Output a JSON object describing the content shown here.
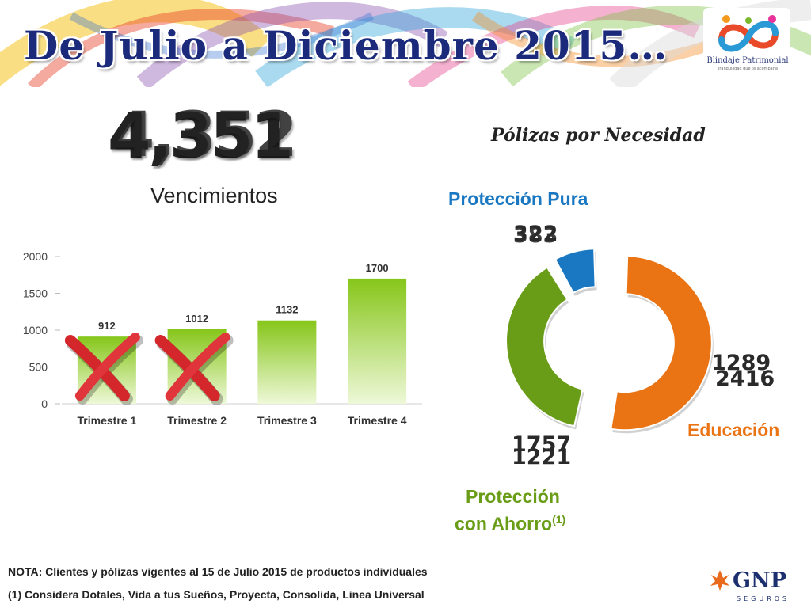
{
  "header": {
    "title": "De Julio a Diciembre 2015…",
    "logo": {
      "name": "Blindaje Patrimonial",
      "tagline": "Tranquilidad que te acompaña",
      "icon": "infinity-people-logo"
    }
  },
  "summary": {
    "total_values": [
      "4,351",
      "4,352"
    ],
    "subtitle": "Vencimientos"
  },
  "donut_title": "Pólizas por Necesidad",
  "segments": {
    "proteccion_pura": {
      "label": "Protección Pura",
      "numbers": [
        "322",
        "383"
      ],
      "color": "#1a78c2"
    },
    "educacion": {
      "label": "Educación",
      "numbers": [
        "1289",
        "2416"
      ],
      "color": "#ea7414"
    },
    "proteccion_ahorro": {
      "label_line1": "Protección",
      "label_line2": "con Ahorro",
      "superscript": "(1)",
      "numbers": [
        "1757",
        "1221"
      ],
      "color": "#6a9d17"
    }
  },
  "chart_data": [
    {
      "type": "bar",
      "categories": [
        "Trimestre 1",
        "Trimestre 2",
        "Trimestre 3",
        "Trimestre 4"
      ],
      "values": [
        912,
        1012,
        1132,
        1700
      ],
      "ylim": [
        0,
        2000
      ],
      "yticks": [
        0,
        500,
        1000,
        1500,
        2000
      ],
      "grid": false,
      "crossed_out": [
        "Trimestre 1",
        "Trimestre 2"
      ],
      "colors": {
        "bar_top": "#86c61a",
        "bar_bottom": "#eef8d8"
      }
    },
    {
      "type": "pie",
      "style": "donut",
      "slices": [
        {
          "label": "Educación",
          "value": 2416,
          "color": "#ea7414"
        },
        {
          "label": "Protección con Ahorro",
          "value": 1757,
          "color": "#6a9d17"
        },
        {
          "label": "Protección Pura",
          "value": 383,
          "color": "#1a78c2"
        }
      ]
    }
  ],
  "footer": {
    "note": "NOTA: Clientes y pólizas vigentes al 15 de Julio 2015 de productos individuales",
    "note1": "(1) Considera Dotales, Vida a tus Sueños, Proyecta, Consolida, Linea Universal",
    "brand": "GNP",
    "brand_sub": "SEGUROS"
  }
}
